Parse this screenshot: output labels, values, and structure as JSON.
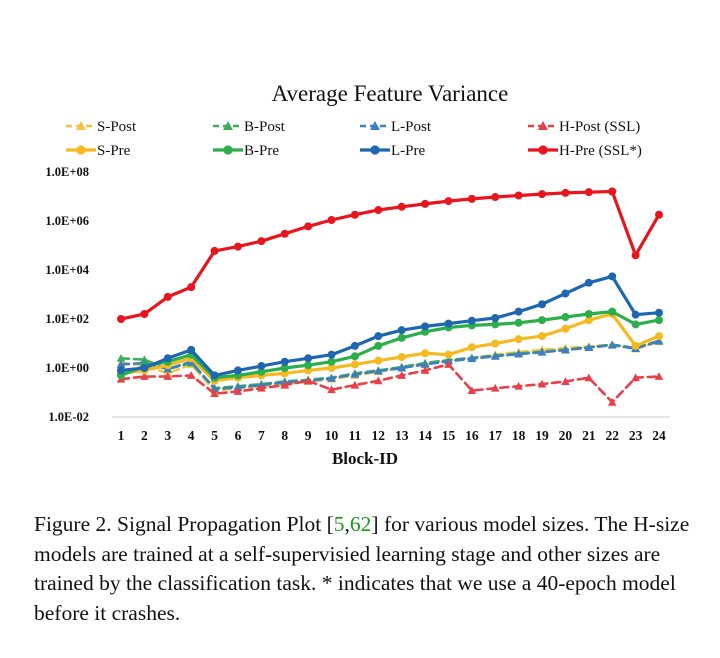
{
  "chart_data": {
    "type": "line",
    "title": "Average Feature Variance",
    "xlabel": "Block-ID",
    "ylabel": "",
    "yscale": "log10",
    "ylim": [
      0.01,
      100000000
    ],
    "yticks": [
      "1.0E-02",
      "1.0E+00",
      "1.0E+02",
      "1.0E+04",
      "1.0E+06",
      "1.0E+08"
    ],
    "x": [
      1,
      2,
      3,
      4,
      5,
      6,
      7,
      8,
      9,
      10,
      11,
      12,
      13,
      14,
      15,
      16,
      17,
      18,
      19,
      20,
      21,
      22,
      23,
      24
    ],
    "grid": false,
    "legend_position": "top",
    "series": [
      {
        "name": "S-Post",
        "color": "#F5C342",
        "style": "dashed",
        "marker": "triangle",
        "values": [
          1.6,
          1.3,
          0.6,
          1.4,
          0.12,
          0.15,
          0.18,
          0.22,
          0.28,
          0.35,
          0.5,
          0.7,
          1.0,
          1.5,
          2.0,
          2.5,
          3.5,
          4.5,
          5.5,
          6.5,
          7.5,
          9.0,
          6.0,
          12
        ]
      },
      {
        "name": "B-Post",
        "color": "#3DAE5C",
        "style": "dashed",
        "marker": "triangle",
        "values": [
          2.5,
          2.2,
          0.9,
          1.6,
          0.15,
          0.18,
          0.22,
          0.28,
          0.33,
          0.4,
          0.6,
          0.8,
          1.1,
          1.6,
          2.1,
          2.6,
          3.2,
          3.9,
          4.6,
          5.6,
          7.0,
          9.0,
          6.5,
          13
        ]
      },
      {
        "name": "L-Post",
        "color": "#3F7FBF",
        "style": "dashed",
        "marker": "triangle",
        "values": [
          1.4,
          1.6,
          0.9,
          1.8,
          0.14,
          0.16,
          0.2,
          0.26,
          0.3,
          0.38,
          0.55,
          0.75,
          1.0,
          1.4,
          1.9,
          2.4,
          3.0,
          3.7,
          4.4,
          5.4,
          6.8,
          8.5,
          6.2,
          12.5
        ]
      },
      {
        "name": "H-Post (SSL)",
        "color": "#E8404A",
        "style": "dashed",
        "marker": "triangle",
        "values": [
          0.35,
          0.45,
          0.45,
          0.5,
          0.09,
          0.11,
          0.15,
          0.2,
          0.3,
          0.13,
          0.2,
          0.3,
          0.5,
          0.8,
          1.4,
          0.12,
          0.15,
          0.18,
          0.22,
          0.28,
          0.4,
          0.04,
          0.4,
          0.45
        ]
      },
      {
        "name": "S-Pre",
        "color": "#F5B921",
        "style": "solid",
        "marker": "circle",
        "values": [
          0.6,
          0.8,
          1.3,
          2.5,
          0.3,
          0.4,
          0.5,
          0.6,
          0.8,
          1.0,
          1.4,
          2.0,
          2.8,
          4.0,
          3.5,
          7.0,
          10,
          15,
          20,
          40,
          90,
          160,
          8.0,
          20
        ]
      },
      {
        "name": "B-Pre",
        "color": "#2BAE4B",
        "style": "solid",
        "marker": "circle",
        "values": [
          0.5,
          1.2,
          1.8,
          3.5,
          0.4,
          0.5,
          0.7,
          1.0,
          1.3,
          1.8,
          3.0,
          8.0,
          17,
          30,
          45,
          55,
          60,
          70,
          90,
          120,
          160,
          200,
          60,
          90
        ]
      },
      {
        "name": "L-Pre",
        "color": "#1E67B0",
        "style": "solid",
        "marker": "circle",
        "values": [
          0.8,
          1.0,
          2.5,
          5.5,
          0.5,
          0.8,
          1.2,
          1.8,
          2.5,
          3.5,
          8.0,
          20,
          35,
          50,
          65,
          85,
          110,
          200,
          400,
          1100,
          3000,
          5500,
          150,
          180
        ]
      },
      {
        "name": "H-Pre (SSL*)",
        "color": "#E8141E",
        "style": "solid",
        "marker": "circle",
        "values": [
          100,
          160,
          800,
          2000,
          60000,
          90000,
          150000,
          300000,
          600000,
          1100000,
          1800000,
          2800000,
          3800000,
          5000000,
          6500000,
          8000000,
          9500000,
          11000000,
          12500000,
          14000000,
          15000000,
          16000000,
          40000,
          1800000
        ]
      }
    ]
  },
  "caption": {
    "prefix": "Figure 2. Signal Propagation Plot [",
    "cite1": "5",
    "sep": ",",
    "cite2": "62",
    "suffix": "] for various model sizes. The H-size models are trained at a self-supervisied learning stage and other sizes are trained by the classification task.  * indicates that we use a 40-epoch model before it crashes."
  }
}
